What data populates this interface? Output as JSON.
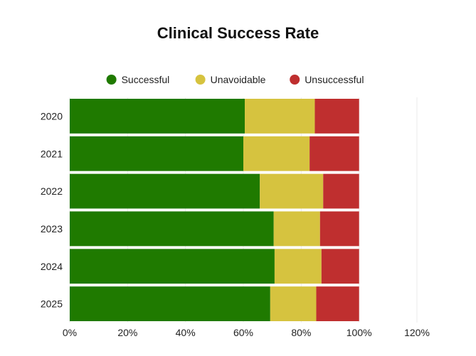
{
  "chart_data": {
    "type": "bar",
    "orientation": "horizontal",
    "stacked": true,
    "title": "Clinical Success Rate",
    "categories": [
      "2020",
      "2021",
      "2022",
      "2023",
      "2024",
      "2025"
    ],
    "series": [
      {
        "name": "Successful",
        "color": "#1f7a00",
        "values": [
          60.5,
          60.0,
          65.7,
          70.5,
          70.8,
          69.3
        ]
      },
      {
        "name": "Unavoidable",
        "color": "#d6c33f",
        "values": [
          24.2,
          22.9,
          21.9,
          16.0,
          16.2,
          15.9
        ]
      },
      {
        "name": "Unsuccessful",
        "color": "#bf2f2f",
        "values": [
          15.3,
          17.1,
          12.4,
          13.5,
          13.0,
          14.8
        ]
      }
    ],
    "xlim": [
      0,
      120
    ],
    "xticks": [
      0,
      20,
      40,
      60,
      80,
      100,
      120
    ],
    "tick_format": "percent",
    "legend_position": "top-center",
    "grid": true,
    "xlabel": "",
    "ylabel": ""
  }
}
